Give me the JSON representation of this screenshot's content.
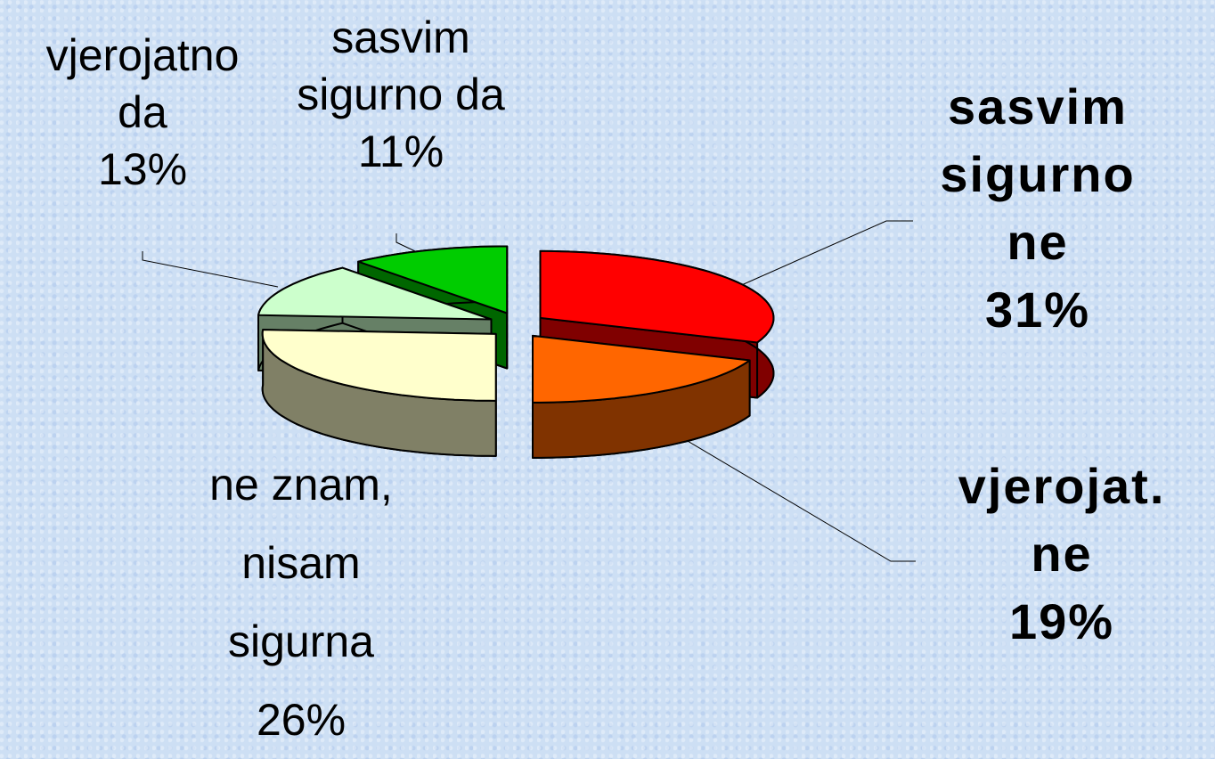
{
  "chart_data": {
    "type": "pie",
    "categories": [
      "sasvim\nsigurno\nne",
      "vjerojat.\nne",
      "ne znam,\nnisam\nsigurna",
      "vjerojatno\nda",
      "sasvim\nsigurno da"
    ],
    "values": [
      31,
      19,
      26,
      13,
      11
    ],
    "value_labels": [
      "31%",
      "19%",
      "26%",
      "13%",
      "11%"
    ],
    "colors": [
      "#ff0000",
      "#ff6600",
      "#ffffcc",
      "#ccffcc",
      "#00cc00"
    ]
  }
}
